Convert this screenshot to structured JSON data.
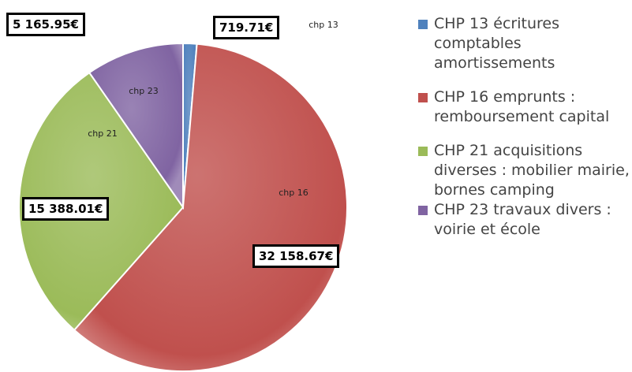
{
  "chart_data": {
    "type": "pie",
    "categories": [
      "CHP 13 écritures comptables amortissements",
      "CHP 16 emprunts : remboursement capital",
      "CHP 21 acquisitions diverses : mobilier mairie, bornes camping",
      "CHP 23 travaux divers : voirie et école"
    ],
    "slice_labels": [
      "chp 13",
      "chp 16",
      "chp 21",
      "chp 23"
    ],
    "values": [
      719.71,
      32158.67,
      15388.01,
      5165.95
    ],
    "value_labels": [
      "719.71€",
      "32 158.67€",
      "15 388.01€",
      "5 165.95€"
    ],
    "colors": [
      "#4f81bd",
      "#c0504d",
      "#9bbb59",
      "#8064a2"
    ]
  }
}
